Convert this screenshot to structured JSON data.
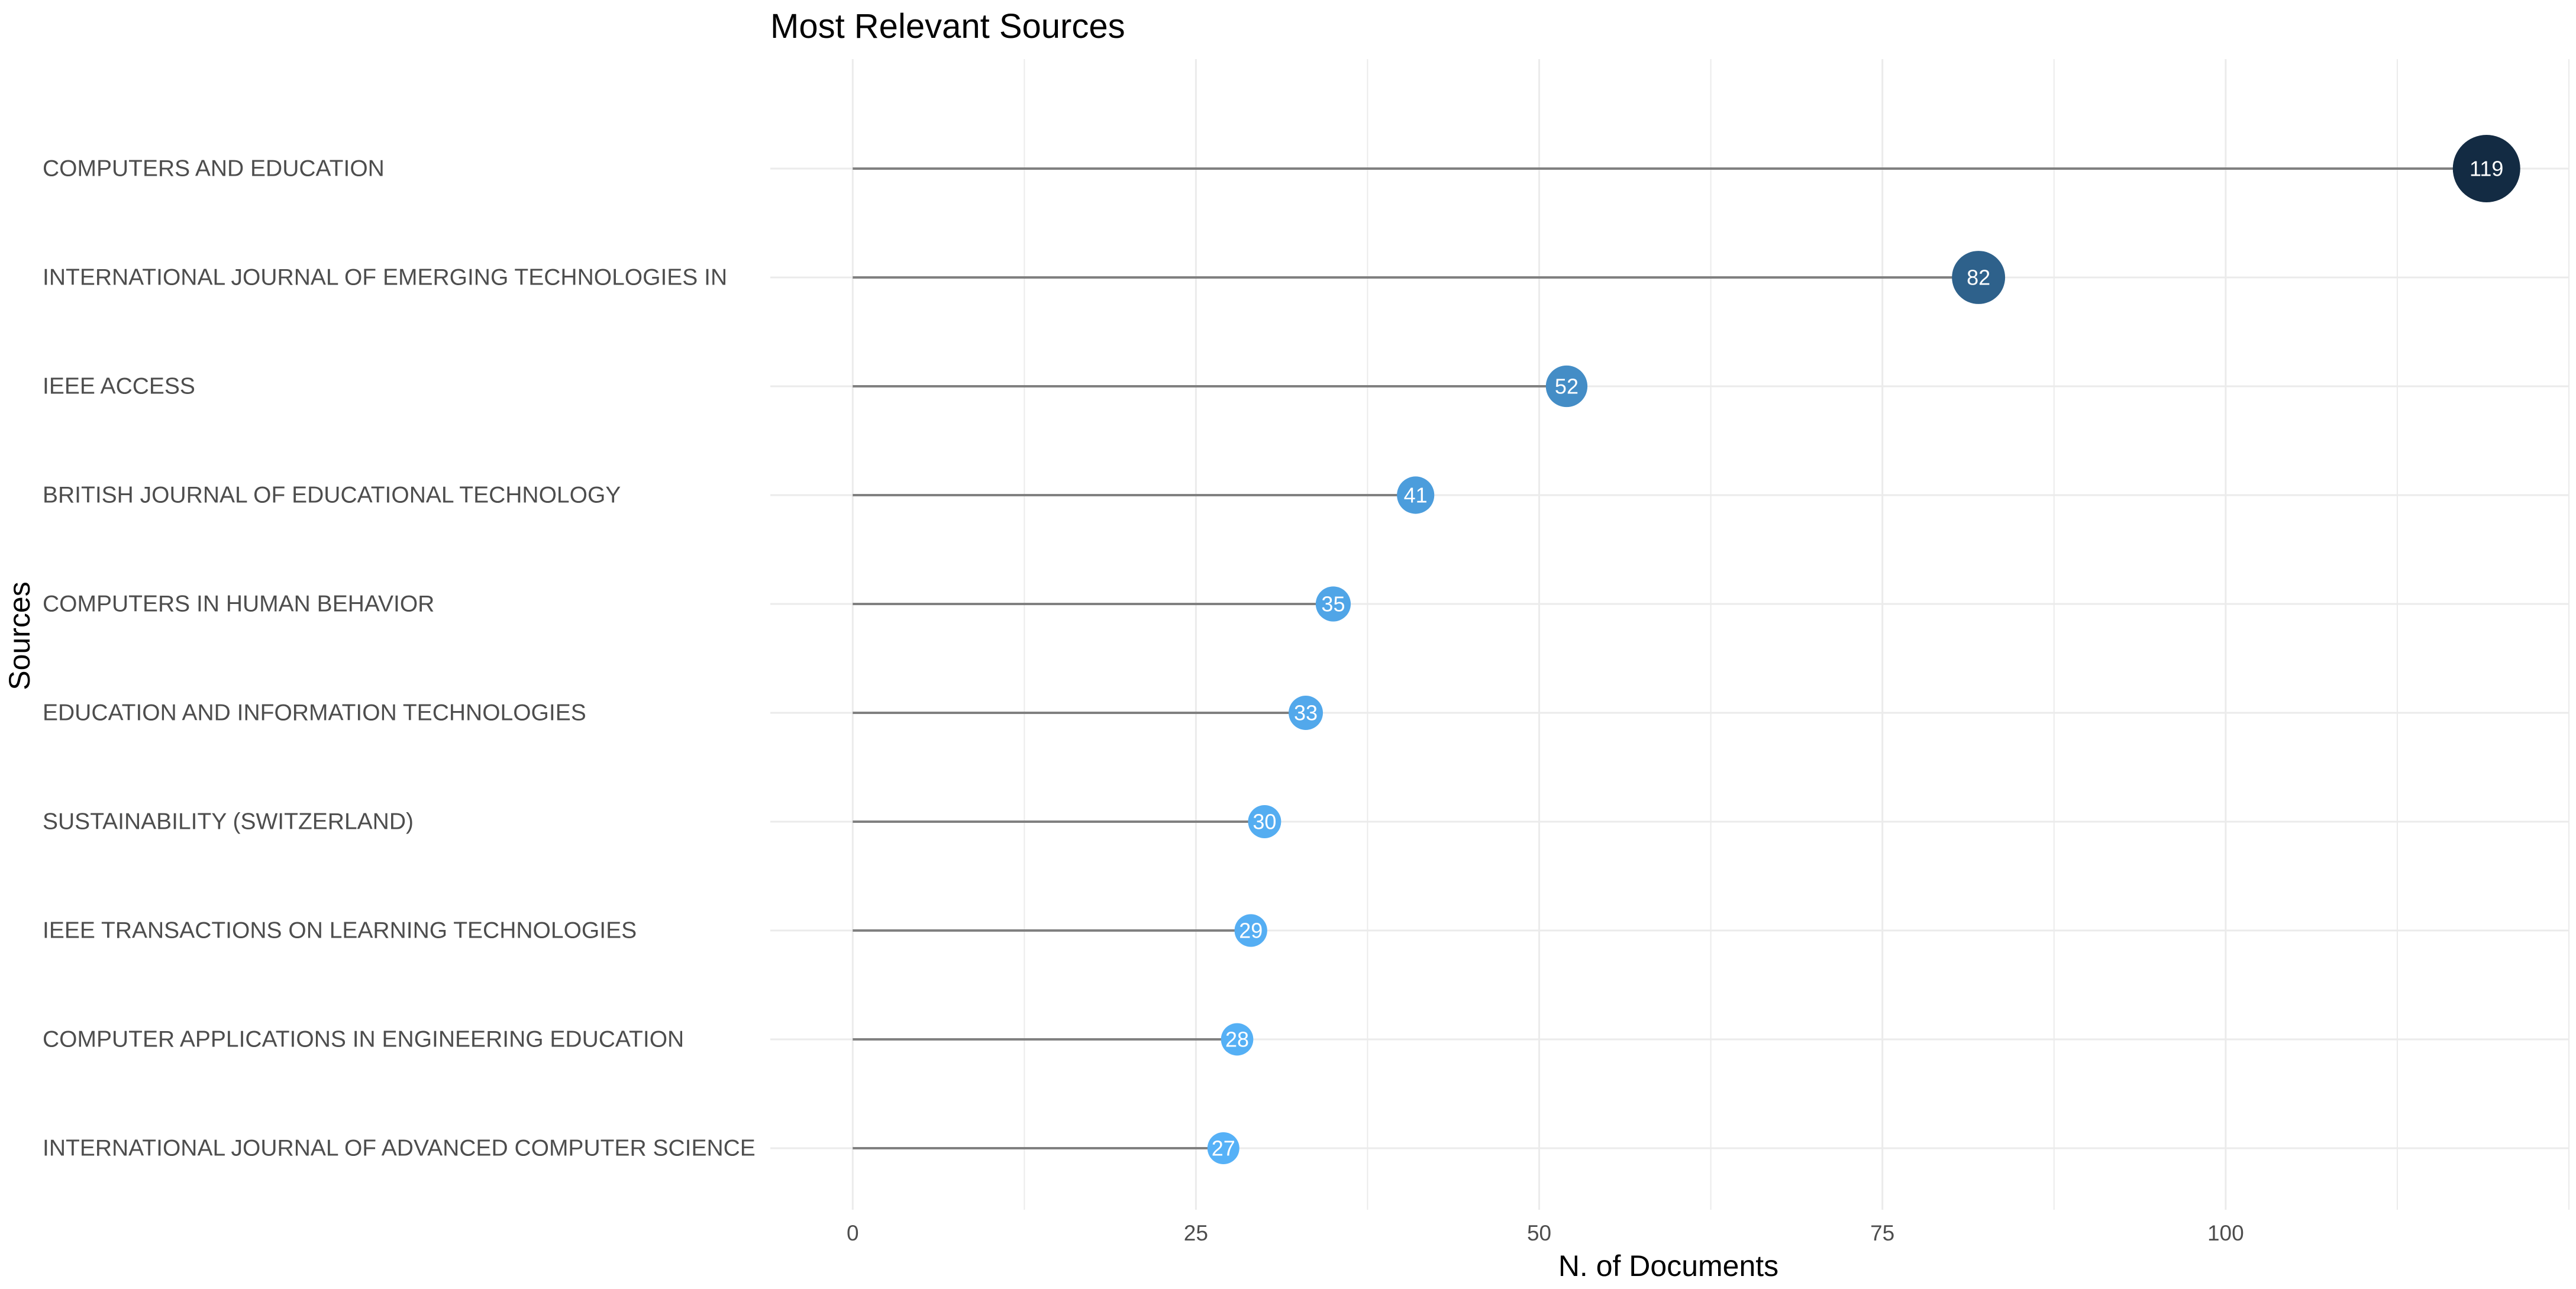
{
  "chart_data": {
    "type": "lollipop",
    "title": "Most Relevant Sources",
    "xlabel": "N. of Documents",
    "ylabel": "Sources",
    "xlim": [
      -6,
      125
    ],
    "x_ticks": [
      0,
      25,
      50,
      75,
      100
    ],
    "grid": true,
    "legend": "none",
    "categories": [
      "COMPUTERS AND EDUCATION",
      "INTERNATIONAL JOURNAL OF EMERGING TECHNOLOGIES IN",
      "IEEE ACCESS",
      "BRITISH JOURNAL OF EDUCATIONAL TECHNOLOGY",
      "COMPUTERS IN HUMAN BEHAVIOR",
      "EDUCATION AND INFORMATION TECHNOLOGIES",
      "SUSTAINABILITY (SWITZERLAND)",
      "IEEE TRANSACTIONS ON LEARNING TECHNOLOGIES",
      "COMPUTER APPLICATIONS IN ENGINEERING EDUCATION",
      "INTERNATIONAL JOURNAL OF ADVANCED COMPUTER SCIENCE"
    ],
    "values": [
      119,
      82,
      52,
      41,
      35,
      33,
      30,
      29,
      28,
      27
    ],
    "colors": {
      "low": "#56B1F7",
      "high": "#132B43",
      "stem": "#808080",
      "grid": "#ebebeb",
      "point_text": "#ffffff"
    }
  }
}
